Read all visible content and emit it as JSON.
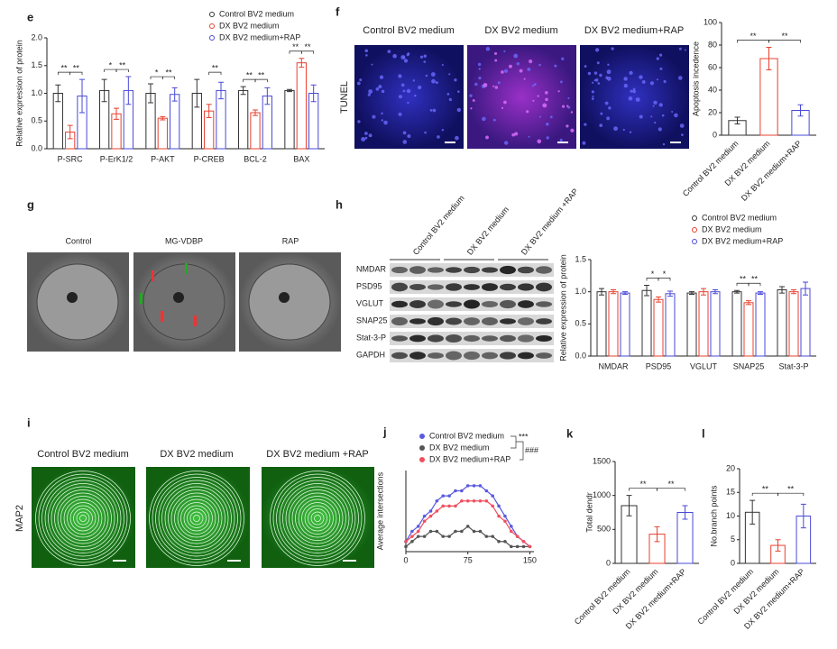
{
  "panel_labels": [
    "e",
    "f",
    "g",
    "h",
    "i",
    "j",
    "k",
    "l"
  ],
  "chart_data": [
    {
      "type": "bar",
      "ylabel": "Relative expression of protein",
      "categories": [
        "P-SRC",
        "P-ErK1/2",
        "P-AKT",
        "P-CREB",
        "BCL-2",
        "BAX"
      ],
      "series": [
        {
          "name": "Control BV2 medium",
          "color": "#333333",
          "values": [
            1.0,
            1.05,
            1.0,
            1.0,
            1.05,
            1.05
          ],
          "errors": [
            0.15,
            0.2,
            0.17,
            0.25,
            0.07,
            0.02
          ]
        },
        {
          "name": "DX BV2 medium",
          "color": "#e8412f",
          "values": [
            0.3,
            0.63,
            0.55,
            0.68,
            0.65,
            1.55
          ],
          "errors": [
            0.12,
            0.1,
            0.03,
            0.12,
            0.05,
            0.08
          ]
        },
        {
          "name": "DX BV2 medium+RAP",
          "color": "#4a4ad8",
          "values": [
            0.95,
            1.05,
            0.98,
            1.05,
            0.95,
            1.0
          ],
          "errors": [
            0.3,
            0.25,
            0.12,
            0.15,
            0.15,
            0.15
          ]
        }
      ],
      "significance": [
        [
          "**",
          "**"
        ],
        [
          "*",
          "**"
        ],
        [
          "*",
          "**"
        ],
        [
          null,
          "**"
        ],
        [
          "**",
          "**"
        ],
        [
          "**",
          "**"
        ]
      ],
      "ylim": [
        0,
        2
      ],
      "yticks": [
        {
          "value": 0,
          "label": "0.0"
        },
        {
          "value": 0.5,
          "label": "0.5"
        },
        {
          "value": 1,
          "label": "1.0"
        },
        {
          "value": 1.5,
          "label": "1.5"
        },
        {
          "value": 2,
          "label": "2.0"
        }
      ],
      "legend": "top-right"
    },
    {
      "type": "bar",
      "ylabel": "Apoptosis incedence",
      "categories": [
        "Control BV2 medium",
        "DX BV2 medium",
        "DX BV2 medium+RAP"
      ],
      "values": [
        13,
        68,
        22
      ],
      "errors": [
        3,
        10,
        5
      ],
      "colors": [
        "#333333",
        "#e8412f",
        "#4a4ad8"
      ],
      "significance": [
        "**",
        "**"
      ],
      "ylim": [
        0,
        100
      ],
      "yticks": [
        0,
        20,
        40,
        60,
        80,
        100
      ]
    },
    {
      "type": "bar",
      "ylabel": "Relative expression of protein",
      "categories": [
        "NMDAR",
        "PSD95",
        "VGLUT",
        "SNAP25",
        "Stat-3-P"
      ],
      "series": [
        {
          "name": "Control BV2 medium",
          "color": "#333333",
          "values": [
            1.0,
            1.02,
            0.98,
            1.0,
            1.03
          ],
          "errors": [
            0.05,
            0.08,
            0.02,
            0.02,
            0.05
          ]
        },
        {
          "name": "DX BV2 medium",
          "color": "#e8412f",
          "values": [
            1.0,
            0.88,
            1.0,
            0.83,
            1.0
          ],
          "errors": [
            0.03,
            0.04,
            0.05,
            0.03,
            0.03
          ]
        },
        {
          "name": "DX BV2 medium+RAP",
          "color": "#4a4ad8",
          "values": [
            0.98,
            0.97,
            1.0,
            0.98,
            1.05
          ],
          "errors": [
            0.02,
            0.04,
            0.03,
            0.02,
            0.1
          ]
        }
      ],
      "significance": [
        [
          null,
          null
        ],
        [
          "*",
          "*"
        ],
        [
          null,
          null
        ],
        [
          "**",
          "**"
        ],
        [
          null,
          null
        ]
      ],
      "ylim": [
        0,
        1.5
      ],
      "yticks": [
        {
          "value": 0,
          "label": "0.0"
        },
        {
          "value": 0.5,
          "label": "0.5"
        },
        {
          "value": 1,
          "label": "1.0"
        },
        {
          "value": 1.5,
          "label": "1.5"
        }
      ],
      "legend": "top-right"
    },
    {
      "type": "line",
      "ylabel": "Average intersections",
      "x": [
        0,
        7.5,
        15,
        22.5,
        30,
        37.5,
        45,
        52.5,
        60,
        67.5,
        75,
        82.5,
        90,
        97.5,
        105,
        112.5,
        120,
        127.5,
        135,
        142.5,
        150
      ],
      "series": [
        {
          "name": "Control BV2 medium",
          "color": "#5a5ae0",
          "values": [
            2,
            4,
            5,
            7,
            8,
            10,
            11,
            11,
            12,
            12,
            13,
            13,
            13,
            12,
            11,
            9,
            7,
            5,
            3,
            2,
            1
          ]
        },
        {
          "name": "DX BV2 medium",
          "color": "#555555",
          "values": [
            1,
            2,
            3,
            3,
            4,
            4,
            3,
            3,
            4,
            4,
            5,
            4,
            4,
            3,
            3,
            2,
            2,
            1,
            1,
            1,
            1
          ]
        },
        {
          "name": "DX BV2 medium+RAP",
          "color": "#f05060",
          "values": [
            2,
            3,
            4,
            6,
            7,
            8,
            9,
            9,
            9,
            10,
            10,
            10,
            10,
            10,
            9,
            7,
            6,
            4,
            3,
            2,
            1
          ]
        }
      ],
      "annotations": [
        "***",
        "###"
      ],
      "xlim": [
        0,
        155
      ],
      "xticks": [
        0,
        75,
        150
      ],
      "ylim": [
        0,
        16
      ],
      "legend": "top"
    },
    {
      "type": "bar",
      "ylabel": "Total dendr",
      "categories": [
        "Control BV2 medium",
        "DX BV2 medium",
        "DX BV2 medium+RAP"
      ],
      "values": [
        850,
        430,
        750
      ],
      "errors": [
        150,
        110,
        100
      ],
      "colors": [
        "#333333",
        "#e8412f",
        "#4a4ad8"
      ],
      "significance": [
        "**",
        "**"
      ],
      "ylim": [
        0,
        1500
      ],
      "yticks": [
        0,
        500,
        1000,
        1500
      ]
    },
    {
      "type": "bar",
      "ylabel": "No.branch points",
      "categories": [
        "Control BV2 medium",
        "DX BV2 medium",
        "DX BV2 medium+RAP"
      ],
      "values": [
        10.8,
        3.8,
        10.0
      ],
      "errors": [
        2.5,
        1.2,
        2.5
      ],
      "colors": [
        "#333333",
        "#e8412f",
        "#4a4ad8"
      ],
      "significance": [
        "**",
        "**"
      ],
      "ylim": [
        0,
        20
      ],
      "yticks": [
        0,
        5,
        10,
        15,
        20
      ]
    }
  ],
  "tunel": {
    "titles": [
      "Control  BV2 medium",
      "DX BV2 medium",
      "DX BV2 medium+RAP"
    ],
    "stain": "TUNEL"
  },
  "em": {
    "titles": [
      "Control",
      "MG-VDBP",
      "RAP"
    ]
  },
  "blot": {
    "columns": [
      "Control BV2 medium",
      "DX BV2 medium",
      "DX BV2 medium +RAP"
    ],
    "rows": [
      "NMDAR",
      "PSD95",
      "VGLUT",
      "SNAP25",
      "Stat-3-P",
      "GAPDH"
    ]
  },
  "map2": {
    "titles": [
      "Control BV2 medium",
      "DX BV2 medium",
      "DX BV2 medium +RAP"
    ],
    "stain": "MAP2"
  }
}
